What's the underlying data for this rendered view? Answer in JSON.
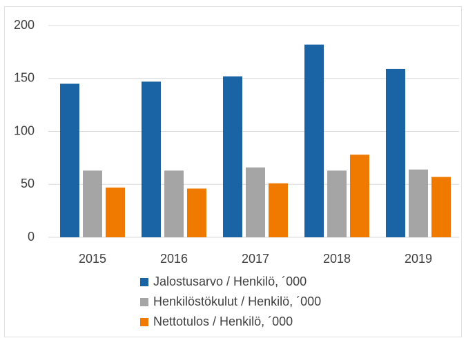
{
  "chart_data": {
    "type": "bar",
    "categories": [
      "2015",
      "2016",
      "2017",
      "2018",
      "2019"
    ],
    "series": [
      {
        "name": "Jalostusarvo / Henkilö, ´000",
        "color": "#1a64a6",
        "values": [
          145,
          147,
          152,
          182,
          159
        ]
      },
      {
        "name": "Henkilöstökulut / Henkilö, ´000",
        "color": "#a5a5a5",
        "values": [
          63,
          63,
          66,
          63,
          64
        ]
      },
      {
        "name": "Nettotulos / Henkilö, ´000",
        "color": "#f07a00",
        "values": [
          47,
          46,
          51,
          78,
          57
        ]
      }
    ],
    "ylim": [
      0,
      200
    ],
    "yticks": [
      0,
      50,
      100,
      150,
      200
    ],
    "grid": true,
    "legend": "bottom"
  }
}
